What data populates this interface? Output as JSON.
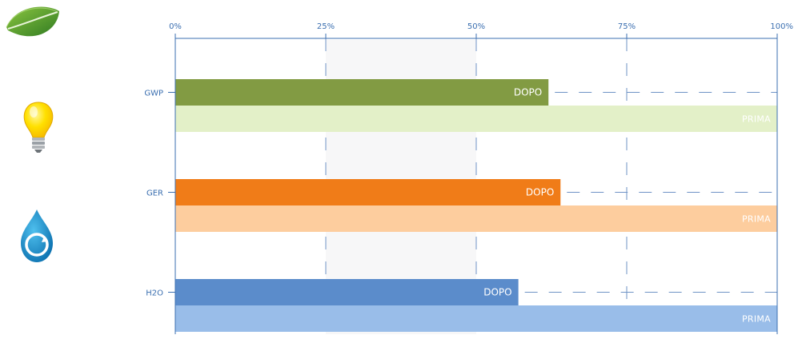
{
  "chart_data": {
    "type": "bar",
    "orientation": "horizontal",
    "categories": [
      "GWP",
      "GER",
      "H2O"
    ],
    "x_ticks": [
      "0%",
      "25%",
      "50%",
      "75%",
      "100%"
    ],
    "xlim": [
      0,
      100
    ],
    "x_axis_position": "top",
    "grid": "vertical dashed",
    "series": [
      {
        "name": "DOPO",
        "values": [
          62,
          64,
          57
        ],
        "colors": [
          "#829b43",
          "#f07c18",
          "#5b8ccb"
        ]
      },
      {
        "name": "PRIMA",
        "values": [
          100,
          100,
          100
        ],
        "colors": [
          "#e3f0c8",
          "#fdcd9e",
          "#99bde9"
        ]
      }
    ]
  },
  "icons": [
    {
      "name": "leaf-icon",
      "color": "#4a8a2c"
    },
    {
      "name": "lightbulb-icon",
      "color": "#ffd200"
    },
    {
      "name": "water-drop-icon",
      "color": "#1a8ac4"
    }
  ]
}
